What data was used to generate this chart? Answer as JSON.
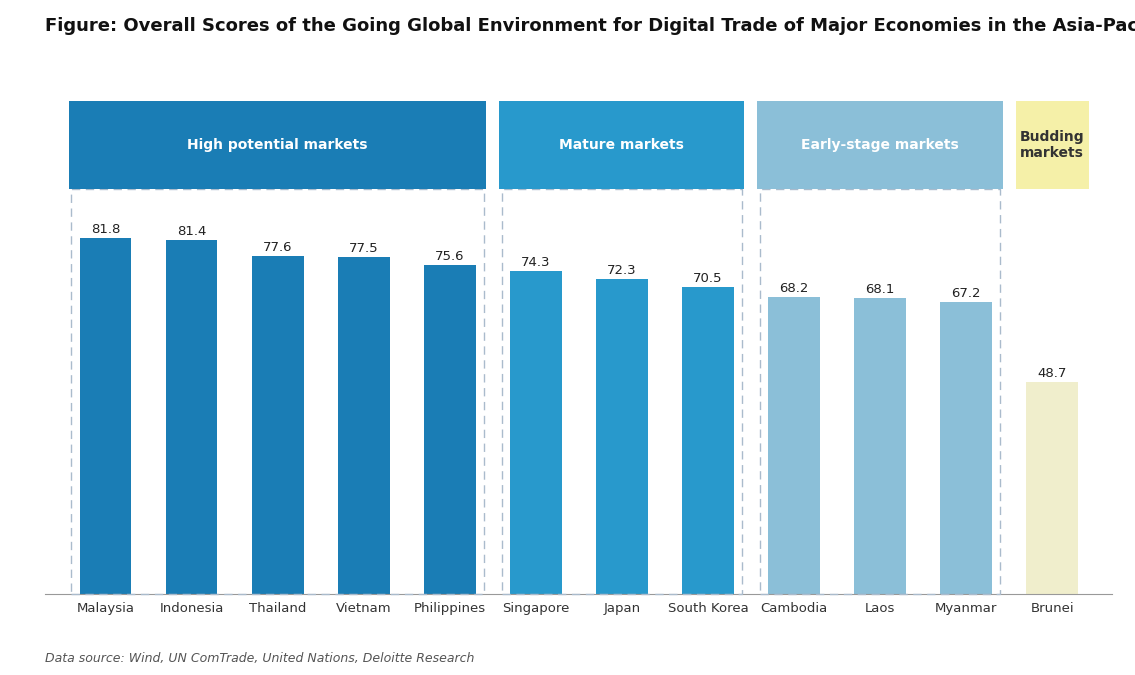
{
  "title": "Figure: Overall Scores of the Going Global Environment for Digital Trade of Major Economies in the Asia-Pacific Region",
  "source": "Data source: Wind, UN ComTrade, United Nations, Deloitte Research",
  "categories": [
    "Malaysia",
    "Indonesia",
    "Thailand",
    "Vietnam",
    "Philippines",
    "Singapore",
    "Japan",
    "South Korea",
    "Cambodia",
    "Laos",
    "Myanmar",
    "Brunei"
  ],
  "values": [
    81.8,
    81.4,
    77.6,
    77.5,
    75.6,
    74.3,
    72.3,
    70.5,
    68.2,
    68.1,
    67.2,
    48.7
  ],
  "bar_colors": [
    "#1a7db5",
    "#1a7db5",
    "#1a7db5",
    "#1a7db5",
    "#1a7db5",
    "#2899cc",
    "#2899cc",
    "#2899cc",
    "#8bbfd8",
    "#8bbfd8",
    "#8bbfd8",
    "#f0eecc"
  ],
  "header_colors": [
    "#1a7db5",
    "#2899cc",
    "#8bbfd8",
    "#f5f0a8"
  ],
  "header_texts": [
    "High potential markets",
    "Mature markets",
    "Early-stage markets",
    "Budding\nmarkets"
  ],
  "header_text_colors": [
    "#ffffff",
    "#ffffff",
    "#ffffff",
    "#333333"
  ],
  "dashed_box_color": "#aabbcc",
  "group_bar_ranges": [
    [
      0,
      4
    ],
    [
      5,
      7
    ],
    [
      8,
      10
    ],
    [
      11,
      11
    ]
  ],
  "bar_width": 0.6,
  "ylim": [
    0,
    90
  ],
  "background_color": "#ffffff",
  "title_fontsize": 13,
  "label_fontsize": 9.5,
  "value_fontsize": 9.5,
  "source_fontsize": 9
}
